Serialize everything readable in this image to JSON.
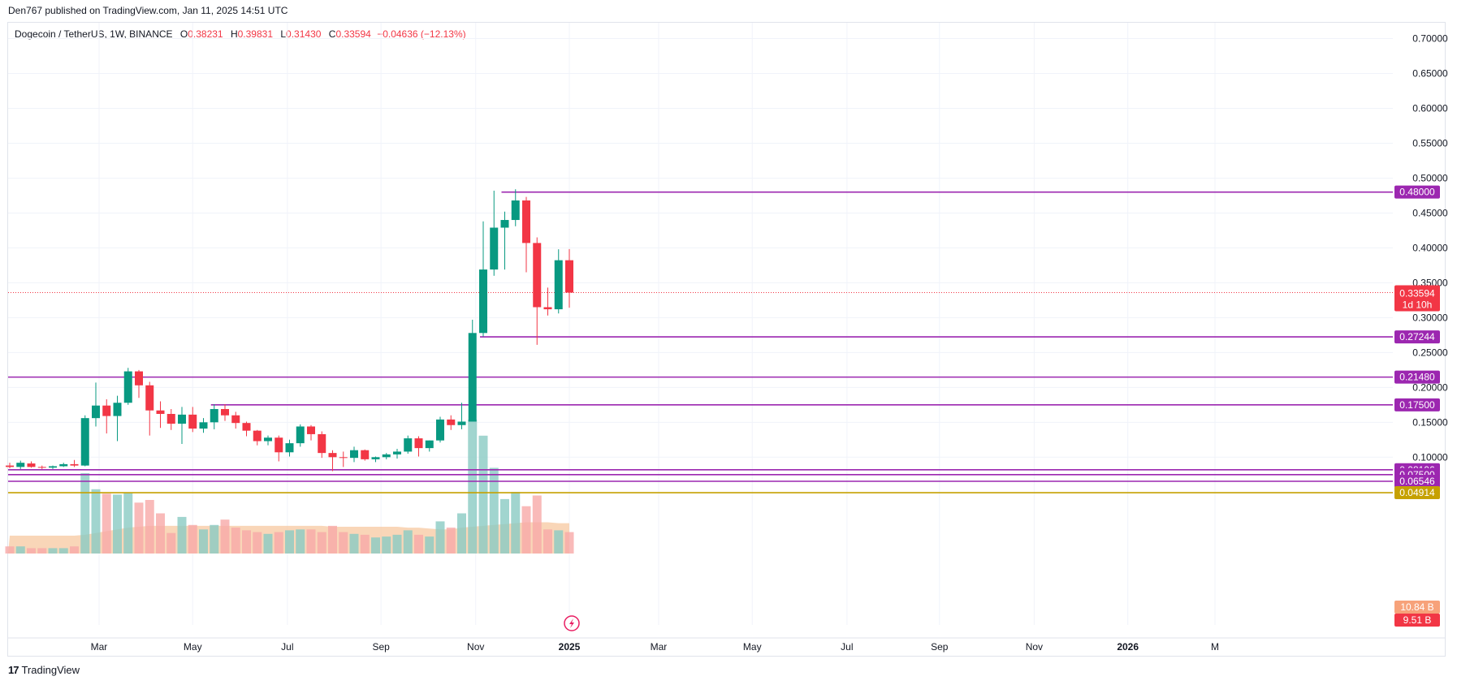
{
  "header": {
    "credit": "Den767 published on TradingView.com, Jan 11, 2025 14:51 UTC"
  },
  "legend": {
    "symbol": "Dogecoin / TetherUS, 1W, BINANCE",
    "o_label": "O",
    "o_value": "0.38231",
    "h_label": "H",
    "h_value": "0.39831",
    "l_label": "L",
    "l_value": "0.31430",
    "c_label": "C",
    "c_value": "0.33594",
    "change": "−0.04636 (−12.13%)"
  },
  "footer": {
    "logo_mark": "17",
    "logo_text": "TradingView"
  },
  "colors": {
    "up": "#089981",
    "down": "#f23645",
    "vol_up": "#89cbc3",
    "vol_down": "#f7a9a7",
    "level": "#9c27b0",
    "level_gold": "#c6a100",
    "vol_ma_fill": "#f7c8a0"
  },
  "chart_data": {
    "type": "candlestick",
    "ylim": [
      0.06,
      0.72
    ],
    "y_ticks": [
      "0.70000",
      "0.65000",
      "0.60000",
      "0.55000",
      "0.50000",
      "0.45000",
      "0.40000",
      "0.35000",
      "0.30000",
      "0.25000",
      "0.20000",
      "0.15000",
      "0.10000"
    ],
    "x_ticks": [
      {
        "label": "Mar",
        "week": 8.3
      },
      {
        "label": "May",
        "week": 17.0
      },
      {
        "label": "Jul",
        "week": 25.8
      },
      {
        "label": "Sep",
        "week": 34.5
      },
      {
        "label": "Nov",
        "week": 43.3
      },
      {
        "label": "2025",
        "week": 52.0,
        "bold": true
      },
      {
        "label": "Mar",
        "week": 60.3
      },
      {
        "label": "May",
        "week": 69.0
      },
      {
        "label": "Jul",
        "week": 77.8
      },
      {
        "label": "Sep",
        "week": 86.4
      },
      {
        "label": "Nov",
        "week": 95.2
      },
      {
        "label": "2026",
        "week": 103.9,
        "bold": true
      },
      {
        "label": "M",
        "week": 112.0
      }
    ],
    "candles": [
      [
        0.088,
        0.092,
        0.084,
        0.086
      ],
      [
        0.086,
        0.095,
        0.083,
        0.092
      ],
      [
        0.091,
        0.094,
        0.085,
        0.086
      ],
      [
        0.086,
        0.088,
        0.083,
        0.085
      ],
      [
        0.085,
        0.088,
        0.083,
        0.087
      ],
      [
        0.087,
        0.092,
        0.086,
        0.09
      ],
      [
        0.09,
        0.096,
        0.086,
        0.088
      ],
      [
        0.088,
        0.16,
        0.087,
        0.156
      ],
      [
        0.156,
        0.207,
        0.144,
        0.174
      ],
      [
        0.174,
        0.183,
        0.134,
        0.159
      ],
      [
        0.159,
        0.188,
        0.123,
        0.178
      ],
      [
        0.178,
        0.228,
        0.175,
        0.223
      ],
      [
        0.223,
        0.225,
        0.185,
        0.203
      ],
      [
        0.203,
        0.208,
        0.131,
        0.167
      ],
      [
        0.167,
        0.18,
        0.142,
        0.162
      ],
      [
        0.162,
        0.169,
        0.139,
        0.148
      ],
      [
        0.148,
        0.172,
        0.119,
        0.161
      ],
      [
        0.161,
        0.172,
        0.136,
        0.141
      ],
      [
        0.141,
        0.156,
        0.135,
        0.15
      ],
      [
        0.15,
        0.176,
        0.14,
        0.169
      ],
      [
        0.169,
        0.176,
        0.152,
        0.16
      ],
      [
        0.16,
        0.165,
        0.141,
        0.149
      ],
      [
        0.149,
        0.151,
        0.13,
        0.138
      ],
      [
        0.138,
        0.139,
        0.117,
        0.123
      ],
      [
        0.123,
        0.131,
        0.117,
        0.128
      ],
      [
        0.128,
        0.131,
        0.094,
        0.107
      ],
      [
        0.107,
        0.125,
        0.101,
        0.12
      ],
      [
        0.12,
        0.147,
        0.115,
        0.144
      ],
      [
        0.144,
        0.146,
        0.124,
        0.133
      ],
      [
        0.133,
        0.137,
        0.099,
        0.106
      ],
      [
        0.106,
        0.11,
        0.08,
        0.1
      ],
      [
        0.1,
        0.108,
        0.086,
        0.099
      ],
      [
        0.099,
        0.115,
        0.093,
        0.11
      ],
      [
        0.11,
        0.111,
        0.095,
        0.097
      ],
      [
        0.097,
        0.101,
        0.093,
        0.1
      ],
      [
        0.1,
        0.106,
        0.097,
        0.104
      ],
      [
        0.104,
        0.112,
        0.098,
        0.108
      ],
      [
        0.108,
        0.131,
        0.105,
        0.127
      ],
      [
        0.127,
        0.13,
        0.101,
        0.113
      ],
      [
        0.113,
        0.124,
        0.108,
        0.124
      ],
      [
        0.124,
        0.158,
        0.121,
        0.154
      ],
      [
        0.154,
        0.16,
        0.139,
        0.146
      ],
      [
        0.146,
        0.178,
        0.14,
        0.151
      ],
      [
        0.151,
        0.297,
        0.152,
        0.278
      ],
      [
        0.278,
        0.438,
        0.273,
        0.369
      ],
      [
        0.369,
        0.482,
        0.36,
        0.429
      ],
      [
        0.429,
        0.452,
        0.369,
        0.44
      ],
      [
        0.44,
        0.484,
        0.431,
        0.468
      ],
      [
        0.468,
        0.473,
        0.365,
        0.407
      ],
      [
        0.407,
        0.415,
        0.261,
        0.315
      ],
      [
        0.315,
        0.343,
        0.303,
        0.312
      ],
      [
        0.312,
        0.398,
        0.306,
        0.3823
      ],
      [
        0.3823,
        0.3983,
        0.3143,
        0.3359
      ]
    ],
    "volumes": [
      0.8,
      0.8,
      0.6,
      0.6,
      0.6,
      0.6,
      0.8,
      9.0,
      7.2,
      6.7,
      6.6,
      6.8,
      5.7,
      6.0,
      4.5,
      2.3,
      4.1,
      3.2,
      2.7,
      3.2,
      3.8,
      2.9,
      2.6,
      2.4,
      2.2,
      2.4,
      2.6,
      2.7,
      2.7,
      2.4,
      3.1,
      2.4,
      2.2,
      2.1,
      1.8,
      1.9,
      2.1,
      2.6,
      2.1,
      1.9,
      3.6,
      2.9,
      4.5,
      15.0,
      13.2,
      9.6,
      6.1,
      6.9,
      5.3,
      6.5,
      2.7,
      2.6,
      2.4
    ],
    "volume_ma": [
      2.0,
      2.0,
      2.0,
      2.0,
      2.0,
      2.0,
      2.0,
      2.1,
      2.3,
      2.5,
      2.7,
      2.9,
      3.0,
      3.1,
      3.1,
      3.1,
      3.1,
      3.1,
      3.1,
      3.1,
      3.1,
      3.1,
      3.1,
      3.1,
      3.1,
      3.1,
      3.1,
      3.1,
      3.1,
      3.1,
      3.0,
      3.0,
      3.0,
      3.0,
      3.0,
      3.0,
      3.0,
      2.9,
      2.9,
      2.8,
      2.7,
      2.7,
      2.9,
      3.0,
      3.1,
      3.2,
      3.3,
      3.4,
      3.5,
      3.5,
      3.5,
      3.4,
      3.4
    ],
    "volume_max": 15.0,
    "levels": [
      {
        "value": 0.48,
        "label": "0.48000",
        "from_week": 46,
        "color": "#9c27b0"
      },
      {
        "value": 0.27244,
        "label": "0.27244",
        "from_week": 44,
        "color": "#9c27b0"
      },
      {
        "value": 0.2148,
        "label": "0.21480",
        "from_week": 0,
        "color": "#9c27b0"
      },
      {
        "value": 0.175,
        "label": "0.17500",
        "from_week": 19,
        "color": "#9c27b0"
      },
      {
        "value": 0.08196,
        "label": "0.08196",
        "from_week": 0,
        "color": "#9c27b0"
      },
      {
        "value": 0.075,
        "label": "0.07500",
        "from_week": 0,
        "color": "#9c27b0"
      },
      {
        "value": 0.06546,
        "label": "0.06546",
        "from_week": 0,
        "color": "#9c27b0"
      },
      {
        "value": 0.04914,
        "label": "0.04914",
        "from_week": 0,
        "color": "#c6a100"
      }
    ],
    "current_price": {
      "value": 0.33594,
      "label": "0.33594",
      "countdown": "1d 10h"
    },
    "volume_tags": [
      {
        "label": "10.84 B",
        "color": "#f7a27a"
      },
      {
        "label": "9.51 B",
        "color": "#f23645"
      }
    ]
  }
}
